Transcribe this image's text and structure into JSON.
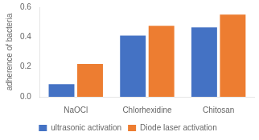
{
  "chart_data": {
    "type": "bar",
    "categories": [
      "NaOCl",
      "Chlorhexidine",
      "Chitosan"
    ],
    "series": [
      {
        "name": "ultrasonic activation",
        "color": "#4472c4",
        "values": [
          0.085,
          0.41,
          0.465
        ]
      },
      {
        "name": "Diode laser activation",
        "color": "#ed7d31",
        "values": [
          0.22,
          0.475,
          0.55
        ]
      }
    ],
    "ylabel": "adherence of bacteria",
    "ylim": [
      0,
      0.6
    ],
    "yticks": [
      {
        "value": 0,
        "label": "0.0"
      },
      0.2,
      0.4,
      0.6
    ],
    "grid": false,
    "legend": "bottom"
  }
}
